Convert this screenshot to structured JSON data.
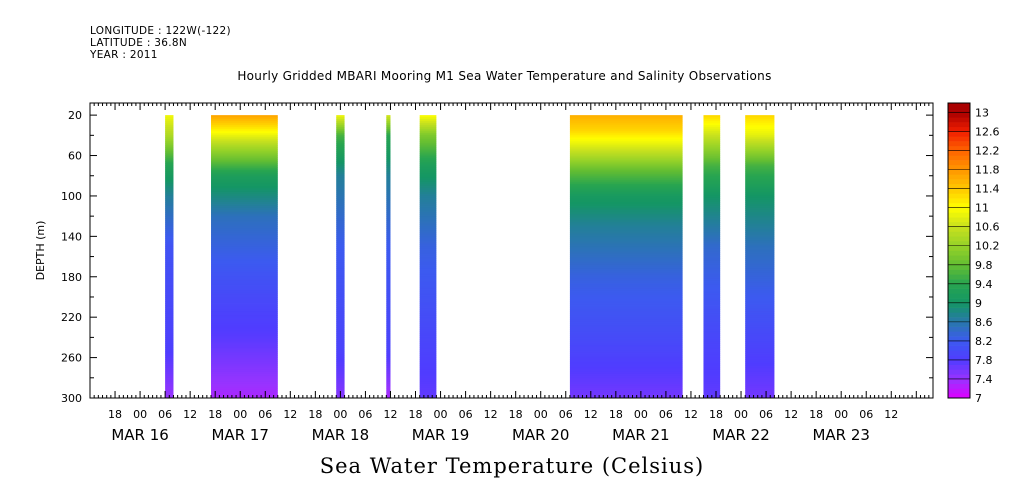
{
  "header": {
    "longitude": "LONGITUDE : 122W(-122)",
    "latitude": "LATITUDE : 36.8N",
    "year": "YEAR : 2011"
  },
  "chart_data": {
    "type": "heatmap",
    "title": "Hourly Gridded MBARI Mooring M1 Sea Water Temperature and Salinity Observations",
    "subtitle": "Sea Water Temperature (Celsius)",
    "ylabel": "DEPTH (m)",
    "y_axis": {
      "reversed": true,
      "range": [
        8,
        300
      ],
      "ticks": [
        20,
        60,
        100,
        140,
        180,
        220,
        260,
        300
      ]
    },
    "x_axis": {
      "unit": "hours from MAR 15 12:00",
      "range": [
        0,
        202
      ],
      "hour_ticks": [
        {
          "h": 6,
          "label": "18"
        },
        {
          "h": 12,
          "label": "00"
        },
        {
          "h": 18,
          "label": "06"
        },
        {
          "h": 24,
          "label": "12"
        },
        {
          "h": 30,
          "label": "18"
        },
        {
          "h": 36,
          "label": "00"
        },
        {
          "h": 42,
          "label": "06"
        },
        {
          "h": 48,
          "label": "12"
        },
        {
          "h": 54,
          "label": "18"
        },
        {
          "h": 60,
          "label": "00"
        },
        {
          "h": 66,
          "label": "06"
        },
        {
          "h": 72,
          "label": "12"
        },
        {
          "h": 78,
          "label": "18"
        },
        {
          "h": 84,
          "label": "00"
        },
        {
          "h": 90,
          "label": "06"
        },
        {
          "h": 96,
          "label": "12"
        },
        {
          "h": 102,
          "label": "18"
        },
        {
          "h": 108,
          "label": "00"
        },
        {
          "h": 114,
          "label": "06"
        },
        {
          "h": 120,
          "label": "12"
        },
        {
          "h": 126,
          "label": "18"
        },
        {
          "h": 132,
          "label": "00"
        },
        {
          "h": 138,
          "label": "06"
        },
        {
          "h": 144,
          "label": "12"
        },
        {
          "h": 150,
          "label": "18"
        },
        {
          "h": 156,
          "label": "00"
        },
        {
          "h": 162,
          "label": "06"
        },
        {
          "h": 168,
          "label": "12"
        },
        {
          "h": 174,
          "label": "18"
        },
        {
          "h": 180,
          "label": "00"
        },
        {
          "h": 186,
          "label": "06"
        },
        {
          "h": 192,
          "label": "12"
        }
      ],
      "day_labels": [
        {
          "h": 12,
          "label": "MAR 16"
        },
        {
          "h": 36,
          "label": "MAR 17"
        },
        {
          "h": 60,
          "label": "MAR 18"
        },
        {
          "h": 84,
          "label": "MAR 19"
        },
        {
          "h": 108,
          "label": "MAR 20"
        },
        {
          "h": 132,
          "label": "MAR 21"
        },
        {
          "h": 156,
          "label": "MAR 22"
        },
        {
          "h": 180,
          "label": "MAR 23"
        }
      ]
    },
    "colorbar": {
      "levels": [
        7,
        7.4,
        7.8,
        8.2,
        8.6,
        9,
        9.4,
        9.8,
        10.2,
        10.6,
        11,
        11.4,
        11.8,
        12.2,
        12.6,
        13
      ],
      "range": [
        7,
        13.2
      ]
    },
    "segments": [
      {
        "start": 18,
        "end": 20,
        "profile": [
          [
            20,
            10.9
          ],
          [
            40,
            10.4
          ],
          [
            70,
            9.3
          ],
          [
            100,
            8.7
          ],
          [
            150,
            8.1
          ],
          [
            250,
            7.85
          ],
          [
            300,
            7.4
          ]
        ]
      },
      {
        "start": 29,
        "end": 45,
        "profile": [
          [
            20,
            11.7
          ],
          [
            30,
            11.3
          ],
          [
            50,
            10.4
          ],
          [
            80,
            9.2
          ],
          [
            120,
            8.5
          ],
          [
            180,
            8.1
          ],
          [
            240,
            7.75
          ],
          [
            300,
            7.3
          ]
        ]
      },
      {
        "start": 59,
        "end": 61,
        "profile": [
          [
            20,
            10.9
          ],
          [
            40,
            9.6
          ],
          [
            80,
            8.7
          ],
          [
            150,
            8.2
          ],
          [
            250,
            7.9
          ],
          [
            300,
            7.5
          ]
        ]
      },
      {
        "start": 71,
        "end": 72,
        "profile": [
          [
            20,
            10.7
          ],
          [
            40,
            9.4
          ],
          [
            80,
            8.7
          ],
          [
            150,
            8.2
          ],
          [
            250,
            7.9
          ],
          [
            300,
            7.3
          ]
        ]
      },
      {
        "start": 79,
        "end": 83,
        "profile": [
          [
            20,
            11.0
          ],
          [
            40,
            10.0
          ],
          [
            70,
            9.2
          ],
          [
            100,
            8.7
          ],
          [
            150,
            8.3
          ],
          [
            250,
            7.9
          ],
          [
            300,
            7.7
          ]
        ]
      },
      {
        "start": 115,
        "end": 142,
        "profile": [
          [
            20,
            11.6
          ],
          [
            35,
            11.3
          ],
          [
            55,
            10.6
          ],
          [
            75,
            9.8
          ],
          [
            100,
            9.1
          ],
          [
            130,
            8.7
          ],
          [
            180,
            8.3
          ],
          [
            240,
            8.0
          ],
          [
            300,
            7.6
          ]
        ]
      },
      {
        "start": 147,
        "end": 151,
        "profile": [
          [
            20,
            11.3
          ],
          [
            40,
            10.6
          ],
          [
            70,
            9.6
          ],
          [
            100,
            9.0
          ],
          [
            150,
            8.4
          ],
          [
            250,
            7.9
          ],
          [
            300,
            7.7
          ]
        ]
      },
      {
        "start": 157,
        "end": 164,
        "profile": [
          [
            20,
            11.3
          ],
          [
            40,
            10.8
          ],
          [
            70,
            9.6
          ],
          [
            100,
            9.0
          ],
          [
            150,
            8.5
          ],
          [
            250,
            7.9
          ],
          [
            300,
            7.6
          ]
        ]
      }
    ]
  }
}
